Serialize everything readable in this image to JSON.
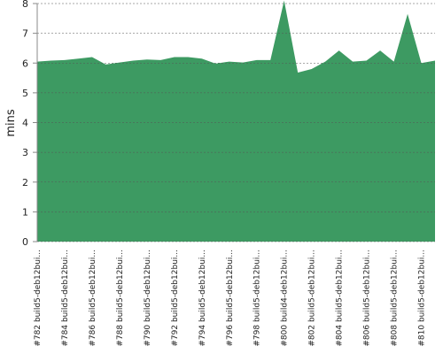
{
  "chart_data": {
    "type": "area",
    "y_label": "mins",
    "color": "#3d9a62",
    "grid": true,
    "categories": [
      "#782 build5-deb12bui...",
      null,
      "#784 build5-deb12bui...",
      null,
      "#786 build5-deb12bui...",
      null,
      "#788 build5-deb12bui...",
      null,
      "#790 build5-deb12bui...",
      null,
      "#792 build5-deb12bui...",
      null,
      "#794 build5-deb12bui...",
      null,
      "#796 build5-deb12bui...",
      null,
      "#798 build5-deb12bui...",
      null,
      "#800 build4-deb12bui...",
      null,
      "#802 build5-deb12bui...",
      null,
      "#804 build5-deb12bui...",
      null,
      "#806 build5-deb12bui...",
      null,
      "#808 build5-deb12bui...",
      null,
      "#810 build5-deb12bui...",
      null
    ],
    "values": [
      6.05,
      6.08,
      6.1,
      6.15,
      6.2,
      5.95,
      6.02,
      6.08,
      6.12,
      6.1,
      6.2,
      6.2,
      6.15,
      5.98,
      6.05,
      6.02,
      6.1,
      6.1,
      8.1,
      5.68,
      5.8,
      6.05,
      6.42,
      6.05,
      6.08,
      6.42,
      6.05,
      7.65,
      6.0,
      6.08
    ],
    "ylim": [
      0,
      8
    ],
    "yticks": [
      0,
      1,
      2,
      3,
      4,
      5,
      6,
      7,
      8
    ]
  }
}
